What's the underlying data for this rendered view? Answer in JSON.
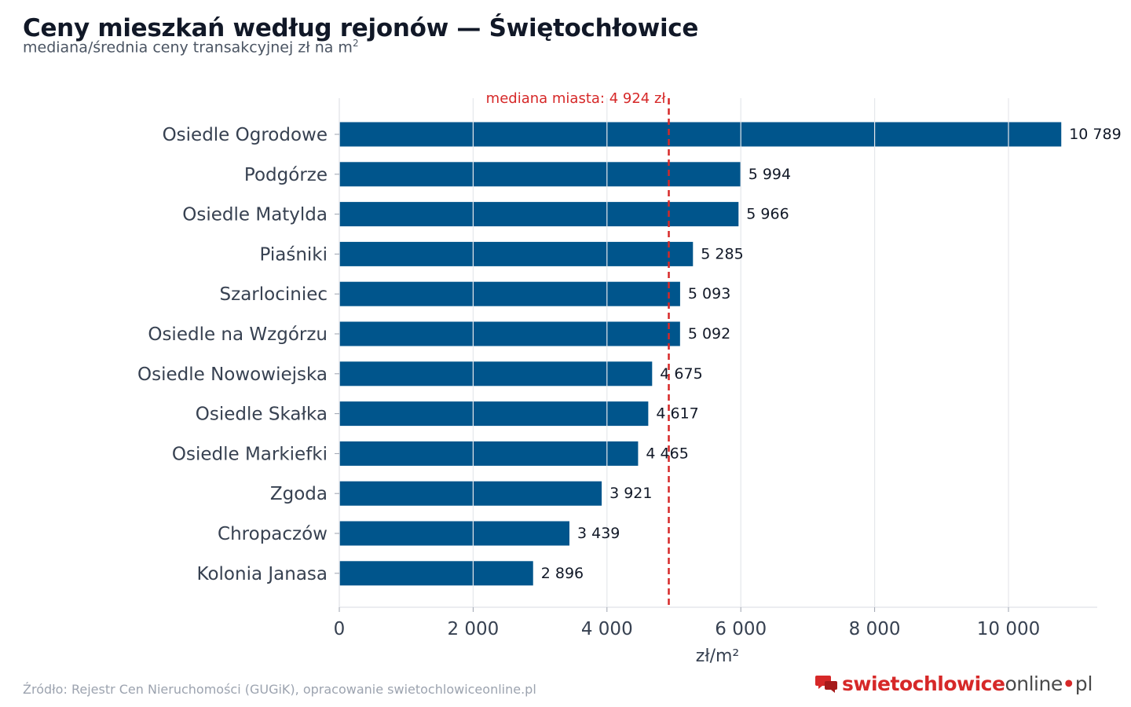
{
  "header": {
    "title": "Ceny mieszkań według rejonów — Świętochłowice",
    "subtitle": "mediana/średnia ceny transakcyjnej zł na m",
    "subtitle_sup": "2"
  },
  "footer": {
    "source": "Źródło: Rejestr Cen Nieruchomości (GUGiK), opracowanie swietochlowiceonline.pl"
  },
  "logo": {
    "part1": "swietochlowice",
    "part2": "online",
    "dot": "•",
    "part3": "pl",
    "icon": "speech-bubbles-icon"
  },
  "colors": {
    "bar": "#00558c",
    "median_line": "#d62828",
    "grid": "#e5e7eb",
    "label": "#374151"
  },
  "chart_data": {
    "type": "bar",
    "orientation": "horizontal",
    "categories": [
      "Osiedle Ogrodowe",
      "Podgórze",
      "Osiedle Matylda",
      "Piaśniki",
      "Szarlociniec",
      "Osiedle na Wzgórzu",
      "Osiedle Nowowiejska",
      "Osiedle Skałka",
      "Osiedle Markiefki",
      "Zgoda",
      "Chropaczów",
      "Kolonia Janasa"
    ],
    "values": [
      10789,
      5994,
      5966,
      5285,
      5093,
      5092,
      4675,
      4617,
      4465,
      3921,
      3439,
      2896
    ],
    "value_labels": [
      "10 789",
      "5 994",
      "5 966",
      "5 285",
      "5 093",
      "5 092",
      "4 675",
      "4 617",
      "4 465",
      "3 921",
      "3 439",
      "2 896"
    ],
    "xlabel": "zł/m²",
    "xlim": [
      0,
      11300
    ],
    "xticks": [
      0,
      2000,
      4000,
      6000,
      8000,
      10000
    ],
    "xtick_labels": [
      "0",
      "2 000",
      "4 000",
      "6 000",
      "8 000",
      "10 000"
    ],
    "grid": "vertical",
    "reference_line": {
      "value": 4924,
      "label": "mediana miasta: 4 924 zł",
      "style": "dashed"
    }
  }
}
